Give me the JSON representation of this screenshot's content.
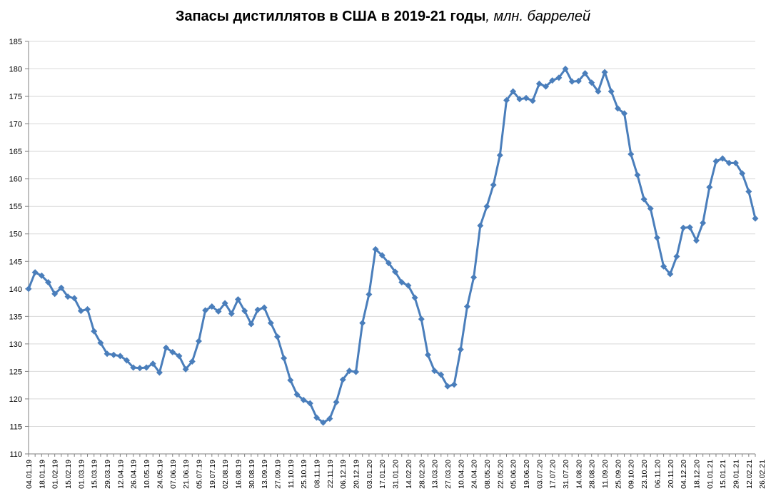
{
  "chart_data": {
    "type": "line",
    "title": "Запасы дистиллятов в США в 2019-21 годы",
    "title_units": ", млн. баррелей",
    "xlabel": "",
    "ylabel": "",
    "ylim": [
      110,
      185
    ],
    "yticks": [
      110,
      115,
      120,
      125,
      130,
      135,
      140,
      145,
      150,
      155,
      160,
      165,
      170,
      175,
      180,
      185
    ],
    "grid": true,
    "legend": "none",
    "colors": {
      "line": "#4a7ebb",
      "marker": "#4a7ebb",
      "grid": "#d9d9d9",
      "axis": "#808080"
    },
    "x_tick_labels": [
      "04.01.19",
      "18.01.19",
      "01.02.19",
      "15.02.19",
      "01.03.19",
      "15.03.19",
      "29.03.19",
      "12.04.19",
      "26.04.19",
      "10.05.19",
      "24.05.19",
      "07.06.19",
      "21.06.19",
      "05.07.19",
      "19.07.19",
      "02.08.19",
      "16.08.19",
      "30.08.19",
      "13.09.19",
      "27.09.19",
      "11.10.19",
      "25.10.19",
      "08.11.19",
      "22.11.19",
      "06.12.19",
      "20.12.19",
      "03.01.20",
      "17.01.20",
      "31.01.20",
      "14.02.20",
      "28.02.20",
      "13.03.20",
      "27.03.20",
      "10.04.20",
      "24.04.20",
      "08.05.20",
      "22.05.20",
      "05.06.20",
      "19.06.20",
      "03.07.20",
      "17.07.20",
      "31.07.20",
      "14.08.20",
      "28.08.20",
      "11.09.20",
      "25.09.20",
      "09.10.20",
      "23.10.20",
      "06.11.20",
      "20.11.20",
      "04.12.20",
      "18.12.20",
      "01.01.21",
      "15.01.21",
      "29.01.21",
      "12.02.21",
      "26.02.21"
    ],
    "series": [
      {
        "values": [
          140.0,
          143.0,
          142.4,
          141.2,
          139.1,
          140.2,
          138.6,
          138.3,
          136.0,
          136.3,
          132.3,
          130.2,
          128.2,
          128.0,
          127.8,
          127.0,
          125.7,
          125.6,
          125.7,
          126.4,
          124.8,
          129.3,
          128.5,
          127.8,
          125.4,
          126.8,
          130.5,
          136.1,
          136.8,
          135.9,
          137.4,
          135.5,
          138.1,
          136.0,
          133.6,
          136.2,
          136.6,
          133.8,
          131.3,
          127.4,
          123.4,
          120.8,
          119.8,
          119.2,
          116.6,
          115.7,
          116.4,
          119.4,
          123.5,
          125.1,
          124.9,
          133.8,
          139.0,
          147.2,
          146.1,
          144.7,
          143.1,
          141.2,
          140.6,
          138.4,
          134.5,
          128.0,
          125.1,
          124.4,
          122.3,
          122.6,
          129.0,
          136.8,
          142.1,
          151.5,
          155.0,
          158.9,
          164.3,
          174.3,
          175.9,
          174.5,
          174.7,
          174.2,
          177.3,
          176.8,
          177.9,
          178.4,
          180.0,
          177.7,
          177.8,
          179.2,
          177.5,
          175.9,
          179.4,
          175.9,
          172.8,
          171.9,
          164.5,
          160.7,
          156.3,
          154.6,
          149.3,
          144.1,
          142.7,
          145.9,
          151.1,
          151.2,
          148.8,
          152.0,
          158.5,
          163.2,
          163.7,
          162.9,
          162.9,
          161.0,
          157.7,
          152.8
        ]
      }
    ]
  }
}
